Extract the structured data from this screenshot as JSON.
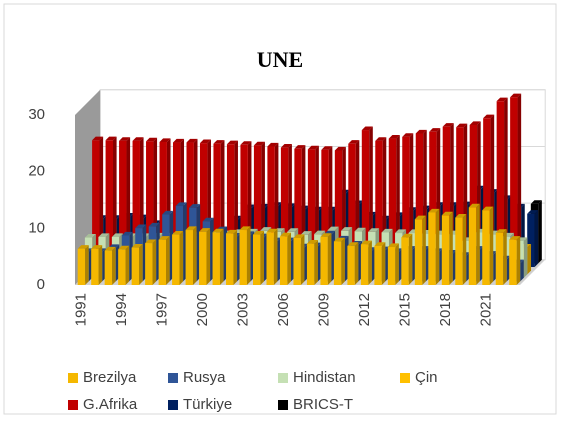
{
  "chart_data": {
    "type": "bar3d",
    "title": "UNE",
    "categories": [
      "1991",
      null,
      null,
      "1994",
      null,
      null,
      "1997",
      null,
      null,
      "2000",
      null,
      null,
      "2003",
      null,
      null,
      "2006",
      null,
      null,
      "2009",
      null,
      null,
      "2012",
      null,
      null,
      "2015",
      null,
      null,
      "2018",
      null,
      null,
      "2021",
      null,
      null
    ],
    "series": [
      {
        "name": "Brezilya",
        "color": "#f5b800",
        "values": [
          6.4,
          6.4,
          6.1,
          6.3,
          6.6,
          7.4,
          8.0,
          8.9,
          9.7,
          9.4,
          9.3,
          9.1,
          9.7,
          8.9,
          9.3,
          8.6,
          8.3,
          7.3,
          8.5,
          7.7,
          6.9,
          7.2,
          6.9,
          6.7,
          8.4,
          11.6,
          12.8,
          12.3,
          11.9,
          13.7,
          13.2,
          9.2,
          8.0
        ]
      },
      {
        "name": "Rusya",
        "color": "#2f5597",
        "values": [
          5.2,
          5.2,
          5.9,
          8.1,
          9.4,
          9.7,
          11.8,
          13.3,
          13.0,
          10.6,
          9.0,
          7.9,
          8.2,
          7.8,
          7.1,
          7.1,
          6.0,
          6.2,
          8.3,
          7.4,
          6.5,
          5.4,
          5.5,
          5.2,
          5.6,
          5.6,
          5.2,
          4.9,
          4.5,
          5.6,
          4.7,
          3.9,
          3.2
        ]
      },
      {
        "name": "Hindistan",
        "color": "#c5e0b4",
        "values": [
          7.1,
          7.2,
          7.2,
          7.2,
          7.2,
          7.3,
          7.3,
          7.4,
          7.4,
          7.6,
          7.7,
          7.9,
          8.0,
          8.3,
          8.1,
          8.1,
          7.6,
          7.7,
          8.4,
          8.3,
          8.2,
          8.1,
          8.0,
          7.9,
          7.9,
          7.8,
          7.7,
          7.7,
          6.5,
          8.0,
          7.7,
          7.3,
          6.5
        ]
      },
      {
        "name": "Çin",
        "color": "#ffc000",
        "values": [
          2.4,
          2.4,
          2.4,
          2.8,
          2.9,
          3.0,
          3.1,
          3.1,
          3.2,
          3.3,
          3.6,
          4.0,
          4.3,
          4.2,
          4.1,
          4.0,
          3.7,
          4.4,
          4.7,
          4.5,
          4.5,
          4.6,
          4.6,
          4.6,
          4.6,
          4.6,
          4.4,
          4.3,
          4.6,
          5.0,
          4.6,
          4.6,
          4.7
        ]
      },
      {
        "name": "G.Afrika",
        "color": "#c00000",
        "values": [
          23.0,
          23.0,
          22.9,
          22.9,
          22.8,
          22.7,
          22.6,
          22.6,
          22.5,
          22.4,
          22.3,
          22.2,
          22.1,
          21.9,
          21.7,
          21.5,
          21.4,
          21.3,
          21.2,
          22.4,
          24.8,
          22.9,
          23.3,
          23.6,
          24.2,
          24.5,
          25.4,
          25.3,
          25.7,
          26.9,
          29.9,
          30.6,
          null
        ]
      },
      {
        "name": "Türkiye",
        "color": "#002060",
        "values": [
          8.5,
          8.5,
          8.9,
          8.6,
          7.6,
          6.6,
          6.8,
          6.9,
          7.7,
          6.5,
          8.4,
          10.4,
          10.5,
          10.8,
          10.6,
          10.2,
          10.0,
          10.0,
          13.0,
          11.1,
          9.1,
          8.4,
          9.0,
          9.9,
          10.2,
          10.8,
          10.8,
          10.9,
          13.7,
          13.1,
          12.0,
          10.5,
          9.4
        ]
      },
      {
        "name": "BRICS-T",
        "color": "#000000",
        "values": [
          null,
          null,
          null,
          null,
          null,
          null,
          null,
          null,
          null,
          null,
          null,
          null,
          null,
          null,
          null,
          null,
          null,
          null,
          null,
          null,
          null,
          null,
          null,
          null,
          null,
          null,
          null,
          null,
          null,
          null,
          null,
          null,
          10.5
        ]
      }
    ],
    "ylim": [
      0,
      30
    ],
    "yticks": [
      0,
      10,
      20,
      30
    ],
    "grid": true
  }
}
